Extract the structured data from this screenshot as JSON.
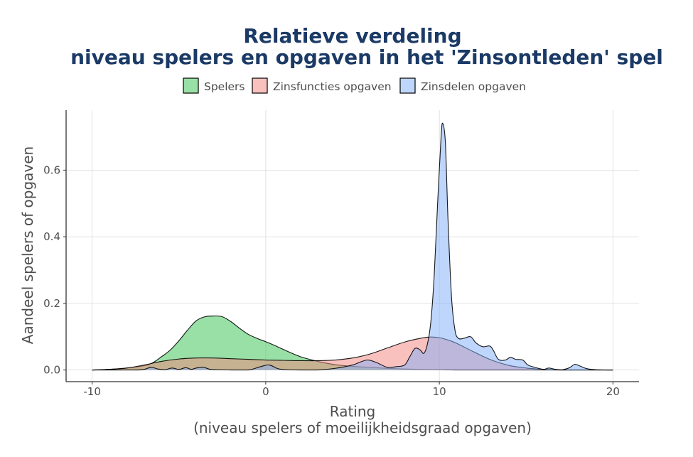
{
  "chart_data": {
    "type": "area",
    "title_line1": "Relatieve verdeling",
    "title_line2": "niveau spelers en opgaven in het 'Zinsontleden' spel",
    "xlabel_line1": "Rating",
    "xlabel_line2": "(niveau spelers of moeilijkheidsgraad opgaven)",
    "ylabel": "Aandeel spelers of opgaven",
    "xlim": [
      -11.5,
      21.5
    ],
    "ylim": [
      -0.035,
      0.78
    ],
    "xticks": [
      -10,
      0,
      10,
      20
    ],
    "xtick_labels": [
      "-10",
      "0",
      "10",
      "20"
    ],
    "yticks": [
      0.0,
      0.2,
      0.4,
      0.6
    ],
    "ytick_labels": [
      "0.0",
      "0.2",
      "0.4",
      "0.6"
    ],
    "grid": true,
    "legend_position": "top",
    "series": [
      {
        "name": "Spelers",
        "color": "#33c24d",
        "x": [
          -10,
          -9,
          -8,
          -7,
          -6.5,
          -6,
          -5.5,
          -5,
          -4.5,
          -4,
          -3.5,
          -3,
          -2.5,
          -2,
          -1.5,
          -1,
          -0.5,
          0,
          0.5,
          1,
          2,
          3,
          4,
          5,
          6,
          7,
          8,
          9,
          10,
          11,
          12,
          13,
          14,
          15,
          16,
          17,
          18,
          19,
          20
        ],
        "y": [
          0.0,
          0.002,
          0.006,
          0.013,
          0.022,
          0.04,
          0.06,
          0.088,
          0.12,
          0.148,
          0.16,
          0.162,
          0.16,
          0.145,
          0.125,
          0.107,
          0.095,
          0.085,
          0.074,
          0.062,
          0.04,
          0.026,
          0.016,
          0.011,
          0.008,
          0.005,
          0.003,
          0.002,
          0.001,
          0.0,
          0.0,
          0.0,
          0.0,
          0.0,
          0.0,
          0.0,
          0.0,
          0.0,
          0.0
        ]
      },
      {
        "name": "Zinsfuncties opgaven",
        "color": "#f4837b",
        "x": [
          -10,
          -9,
          -8,
          -7,
          -6,
          -5,
          -4,
          -3,
          -2,
          -1,
          0,
          1,
          2,
          3,
          4,
          5,
          6,
          7,
          8,
          9,
          9.5,
          10,
          10.5,
          11,
          12,
          13,
          14,
          15,
          16,
          17,
          18,
          19,
          20
        ],
        "y": [
          0.0,
          0.002,
          0.006,
          0.015,
          0.026,
          0.033,
          0.036,
          0.036,
          0.034,
          0.032,
          0.03,
          0.029,
          0.028,
          0.028,
          0.03,
          0.036,
          0.048,
          0.066,
          0.084,
          0.096,
          0.099,
          0.097,
          0.09,
          0.08,
          0.054,
          0.03,
          0.014,
          0.006,
          0.002,
          0.0,
          0.0,
          0.0,
          0.0
        ]
      },
      {
        "name": "Zinsdelen opgaven",
        "color": "#7fadfa",
        "x": [
          -10,
          -7.5,
          -7,
          -6.6,
          -6.2,
          -5.8,
          -5.4,
          -5.0,
          -4.6,
          -4.3,
          -4.0,
          -3.6,
          -3.2,
          -2.8,
          -2.0,
          -1.0,
          -0.3,
          0.2,
          0.7,
          1.2,
          2.0,
          3.0,
          4.0,
          5.0,
          5.5,
          5.9,
          6.4,
          7.0,
          7.5,
          8.0,
          8.3,
          8.6,
          8.9,
          9.1,
          9.3,
          9.5,
          9.7,
          9.9,
          10.1,
          10.2,
          10.35,
          10.5,
          10.7,
          10.9,
          11.1,
          11.4,
          11.8,
          12.1,
          12.5,
          12.9,
          13.1,
          13.4,
          13.8,
          14.1,
          14.4,
          14.8,
          15.1,
          15.5,
          16.0,
          16.3,
          16.7,
          17.1,
          17.5,
          17.8,
          18.1,
          18.5,
          19.0,
          20.0
        ],
        "y": [
          0.0,
          0.0,
          0.002,
          0.008,
          0.003,
          0.001,
          0.006,
          0.002,
          0.007,
          0.002,
          0.006,
          0.008,
          0.002,
          0.001,
          0.0,
          0.0,
          0.01,
          0.015,
          0.004,
          0.001,
          0.0,
          0.0,
          0.005,
          0.015,
          0.025,
          0.03,
          0.022,
          0.008,
          0.01,
          0.015,
          0.04,
          0.065,
          0.06,
          0.05,
          0.075,
          0.14,
          0.28,
          0.5,
          0.7,
          0.74,
          0.68,
          0.45,
          0.22,
          0.12,
          0.095,
          0.095,
          0.1,
          0.082,
          0.07,
          0.072,
          0.06,
          0.032,
          0.03,
          0.038,
          0.032,
          0.03,
          0.015,
          0.008,
          0.002,
          0.006,
          0.002,
          0.001,
          0.007,
          0.017,
          0.012,
          0.004,
          0.001,
          0.0
        ]
      }
    ]
  }
}
